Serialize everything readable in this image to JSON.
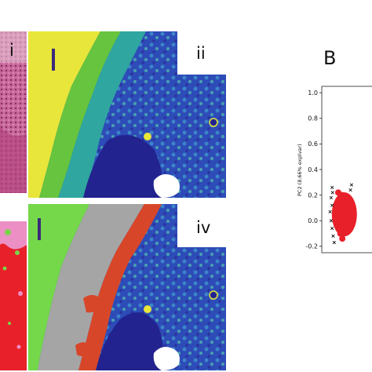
{
  "figure": {
    "panels": {
      "he_top_label": "i",
      "spectral_top_label": "ii",
      "spectral_bottom_label": "iv",
      "scatter_panel_label": "B"
    },
    "colors": {
      "he_stain": "#c45a8a",
      "spectral_dark_blue": "#22238f",
      "spectral_mid_blue": "#2f5cc8",
      "spectral_green": "#5ec23c",
      "spectral_yellow": "#e8e63a",
      "cluster_grey": "#a5a5a5",
      "cluster_red": "#d8462a",
      "cluster_light_green": "#74d84a",
      "scatter_red": "#e8202a",
      "scalebar": "#3a2a7a"
    }
  },
  "chart_data": {
    "type": "scatter",
    "title": "",
    "xlabel": "",
    "ylabel": "PC2 (8.66% explvar)",
    "ylim": [
      -0.25,
      1.05
    ],
    "yticks": [
      "1.0",
      "0.8",
      "0.6",
      "0.4",
      "0.2",
      "0.0",
      "-0.2"
    ],
    "series": [
      {
        "marker": "circle",
        "color": "#e8202a",
        "points": [
          {
            "x": 0.0,
            "y": 0.12
          },
          {
            "x": 0.01,
            "y": 0.08
          },
          {
            "x": 0.02,
            "y": 0.15
          },
          {
            "x": 0.03,
            "y": 0.02
          },
          {
            "x": 0.04,
            "y": 0.1
          },
          {
            "x": 0.0,
            "y": -0.05
          },
          {
            "x": 0.02,
            "y": 0.2
          },
          {
            "x": 0.05,
            "y": 0.05
          },
          {
            "x": 0.01,
            "y": -0.1
          },
          {
            "x": 0.03,
            "y": 0.18
          },
          {
            "x": 0.04,
            "y": -0.02
          },
          {
            "x": 0.02,
            "y": -0.14
          },
          {
            "x": 0.05,
            "y": 0.14
          },
          {
            "x": 0.0,
            "y": 0.22
          },
          {
            "x": 0.03,
            "y": -0.08
          }
        ]
      },
      {
        "marker": "x",
        "color": "#111111",
        "points": [
          {
            "x": -0.03,
            "y": 0.26
          },
          {
            "x": -0.035,
            "y": 0.18
          },
          {
            "x": -0.03,
            "y": 0.12
          },
          {
            "x": -0.04,
            "y": 0.07
          },
          {
            "x": -0.035,
            "y": 0.0
          },
          {
            "x": -0.03,
            "y": -0.06
          },
          {
            "x": -0.025,
            "y": -0.12
          },
          {
            "x": -0.02,
            "y": -0.17
          },
          {
            "x": -0.028,
            "y": 0.22
          },
          {
            "x": 0.06,
            "y": 0.24
          },
          {
            "x": 0.065,
            "y": 0.28
          }
        ]
      }
    ]
  }
}
